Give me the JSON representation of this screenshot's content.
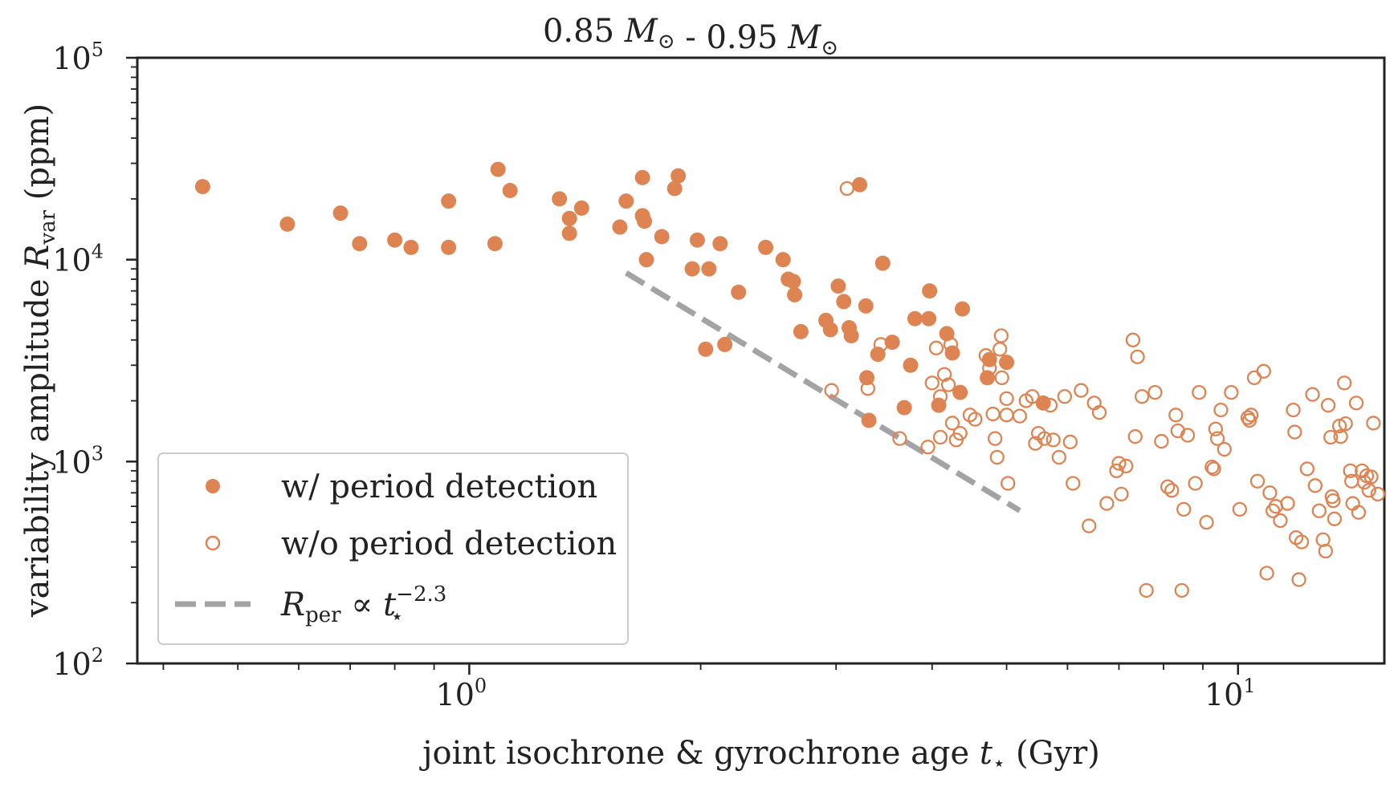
{
  "chart_data": {
    "type": "scatter",
    "title_parts": {
      "left": "0.85",
      "mass_symbol": "M",
      "sun_subscript": "⊙",
      "separator": "-",
      "right": "0.95"
    },
    "xlabel": {
      "prefix": "joint isochrone & gyrochrone age ",
      "var": "t",
      "sub": "⋆",
      "suffix": " (Gyr)"
    },
    "ylabel": {
      "prefix": "variability amplitude ",
      "var": "R",
      "sub": "var",
      "suffix": " (ppm)"
    },
    "xscale": "log",
    "yscale": "log",
    "xlim": [
      0.37,
      15.5
    ],
    "ylim": [
      100,
      100000
    ],
    "x_ticks": [
      {
        "value": 1,
        "base": "10",
        "exp": "0"
      },
      {
        "value": 10,
        "base": "10",
        "exp": "1"
      }
    ],
    "y_ticks": [
      {
        "value": 100,
        "base": "10",
        "exp": "2"
      },
      {
        "value": 1000,
        "base": "10",
        "exp": "3"
      },
      {
        "value": 10000,
        "base": "10",
        "exp": "4"
      },
      {
        "value": 100000,
        "base": "10",
        "exp": "5"
      }
    ],
    "legend_position": "bottom-left",
    "series": [
      {
        "name": "w/ period detection",
        "marker": "filled-circle",
        "color": "#dd8452",
        "points": [
          [
            0.45,
            23000
          ],
          [
            0.58,
            15000
          ],
          [
            0.68,
            17000
          ],
          [
            0.72,
            12000
          ],
          [
            0.8,
            12500
          ],
          [
            0.84,
            11500
          ],
          [
            0.94,
            19500
          ],
          [
            0.94,
            11500
          ],
          [
            1.09,
            28000
          ],
          [
            1.08,
            12000
          ],
          [
            1.13,
            22000
          ],
          [
            1.31,
            20000
          ],
          [
            1.35,
            16000
          ],
          [
            1.35,
            13500
          ],
          [
            1.4,
            18000
          ],
          [
            1.57,
            14500
          ],
          [
            1.6,
            19500
          ],
          [
            1.68,
            25500
          ],
          [
            1.68,
            16500
          ],
          [
            1.69,
            15500
          ],
          [
            1.7,
            10000
          ],
          [
            1.78,
            13000
          ],
          [
            1.85,
            22500
          ],
          [
            1.87,
            26000
          ],
          [
            1.95,
            9000
          ],
          [
            1.98,
            12500
          ],
          [
            2.03,
            3600
          ],
          [
            2.05,
            9000
          ],
          [
            2.12,
            12000
          ],
          [
            2.15,
            3800
          ],
          [
            2.24,
            6900
          ],
          [
            2.43,
            11500
          ],
          [
            2.56,
            10000
          ],
          [
            2.6,
            8000
          ],
          [
            2.64,
            7800
          ],
          [
            2.65,
            6700
          ],
          [
            2.7,
            4400
          ],
          [
            2.91,
            5000
          ],
          [
            2.95,
            4500
          ],
          [
            3.02,
            7400
          ],
          [
            3.07,
            6200
          ],
          [
            3.12,
            4600
          ],
          [
            3.14,
            4200
          ],
          [
            3.22,
            23500
          ],
          [
            3.28,
            5900
          ],
          [
            3.29,
            2600
          ],
          [
            3.31,
            1600
          ],
          [
            3.4,
            3400
          ],
          [
            3.45,
            9600
          ],
          [
            3.55,
            3900
          ],
          [
            3.68,
            1850
          ],
          [
            3.75,
            3000
          ],
          [
            3.8,
            5100
          ],
          [
            3.96,
            5100
          ],
          [
            3.97,
            7000
          ],
          [
            4.08,
            1900
          ],
          [
            4.18,
            4300
          ],
          [
            4.25,
            3450
          ],
          [
            4.35,
            2200
          ],
          [
            4.38,
            5700
          ],
          [
            4.72,
            2600
          ],
          [
            4.75,
            3200
          ],
          [
            5.0,
            3100
          ],
          [
            5.58,
            1950
          ]
        ]
      },
      {
        "name": "w/o period detection",
        "marker": "open-circle",
        "color": "#dd8452",
        "points": [
          [
            3.1,
            22500
          ],
          [
            2.96,
            2250
          ],
          [
            3.3,
            2300
          ],
          [
            3.43,
            3800
          ],
          [
            3.63,
            1300
          ],
          [
            3.95,
            1180
          ],
          [
            4.0,
            2450
          ],
          [
            4.05,
            3650
          ],
          [
            4.1,
            1320
          ],
          [
            4.1,
            2100
          ],
          [
            4.15,
            2700
          ],
          [
            4.2,
            2400
          ],
          [
            4.23,
            3800
          ],
          [
            4.25,
            1550
          ],
          [
            4.3,
            1280
          ],
          [
            4.35,
            1380
          ],
          [
            4.48,
            1700
          ],
          [
            4.55,
            1620
          ],
          [
            4.7,
            3350
          ],
          [
            4.72,
            2600
          ],
          [
            4.75,
            2900
          ],
          [
            4.8,
            1720
          ],
          [
            4.83,
            1300
          ],
          [
            4.86,
            1050
          ],
          [
            4.9,
            3600
          ],
          [
            4.92,
            4200
          ],
          [
            4.93,
            2600
          ],
          [
            5.0,
            2050
          ],
          [
            5.0,
            1700
          ],
          [
            5.02,
            780
          ],
          [
            5.2,
            1680
          ],
          [
            5.3,
            2000
          ],
          [
            5.4,
            2100
          ],
          [
            5.45,
            1230
          ],
          [
            5.5,
            1380
          ],
          [
            5.6,
            1300
          ],
          [
            5.7,
            1900
          ],
          [
            5.75,
            1280
          ],
          [
            5.85,
            1050
          ],
          [
            5.95,
            2100
          ],
          [
            6.05,
            1250
          ],
          [
            6.1,
            780
          ],
          [
            6.25,
            2250
          ],
          [
            6.4,
            480
          ],
          [
            6.5,
            1950
          ],
          [
            6.6,
            1750
          ],
          [
            6.75,
            620
          ],
          [
            6.95,
            900
          ],
          [
            7.0,
            980
          ],
          [
            7.05,
            690
          ],
          [
            7.15,
            950
          ],
          [
            7.3,
            4000
          ],
          [
            7.35,
            1330
          ],
          [
            7.4,
            3300
          ],
          [
            7.5,
            2100
          ],
          [
            7.6,
            230
          ],
          [
            7.8,
            2200
          ],
          [
            7.95,
            1260
          ],
          [
            8.1,
            750
          ],
          [
            8.2,
            720
          ],
          [
            8.3,
            1700
          ],
          [
            8.35,
            1420
          ],
          [
            8.45,
            230
          ],
          [
            8.5,
            580
          ],
          [
            8.6,
            1350
          ],
          [
            8.8,
            780
          ],
          [
            8.9,
            2200
          ],
          [
            9.1,
            500
          ],
          [
            9.25,
            940
          ],
          [
            9.3,
            920
          ],
          [
            9.35,
            1450
          ],
          [
            9.4,
            1300
          ],
          [
            9.5,
            1800
          ],
          [
            9.6,
            1150
          ],
          [
            9.8,
            2200
          ],
          [
            10.05,
            580
          ],
          [
            10.3,
            1650
          ],
          [
            10.35,
            1600
          ],
          [
            10.4,
            1700
          ],
          [
            10.5,
            2600
          ],
          [
            10.6,
            800
          ],
          [
            10.8,
            2800
          ],
          [
            10.9,
            280
          ],
          [
            11.0,
            700
          ],
          [
            11.1,
            570
          ],
          [
            11.2,
            600
          ],
          [
            11.35,
            510
          ],
          [
            11.6,
            620
          ],
          [
            11.8,
            1800
          ],
          [
            11.85,
            1400
          ],
          [
            11.9,
            420
          ],
          [
            12.0,
            260
          ],
          [
            12.1,
            400
          ],
          [
            12.3,
            920
          ],
          [
            12.5,
            2150
          ],
          [
            12.6,
            760
          ],
          [
            12.75,
            570
          ],
          [
            12.9,
            410
          ],
          [
            13.0,
            360
          ],
          [
            13.1,
            1900
          ],
          [
            13.2,
            1320
          ],
          [
            13.25,
            670
          ],
          [
            13.3,
            640
          ],
          [
            13.35,
            520
          ],
          [
            13.55,
            1500
          ],
          [
            13.6,
            1330
          ],
          [
            13.75,
            2450
          ],
          [
            13.8,
            1540
          ],
          [
            14.0,
            900
          ],
          [
            14.05,
            800
          ],
          [
            14.1,
            620
          ],
          [
            14.25,
            1950
          ],
          [
            14.35,
            560
          ],
          [
            14.5,
            900
          ],
          [
            14.6,
            790
          ],
          [
            14.7,
            850
          ],
          [
            14.8,
            720
          ],
          [
            14.9,
            840
          ],
          [
            15.0,
            1550
          ],
          [
            15.2,
            690
          ]
        ]
      }
    ],
    "trend_line": {
      "name": "R_per ∝ t_⋆^-2.3",
      "label_parts": {
        "var": "R",
        "sub": "per",
        "prop": " ∝ ",
        "t": "t",
        "t_sub": "⋆",
        "exp": "−2.3"
      },
      "style": "dashed",
      "color": "#a3a3a3",
      "x_start": 1.6,
      "x_end": 5.2,
      "y_start": 8600,
      "slope": -2.3
    }
  }
}
